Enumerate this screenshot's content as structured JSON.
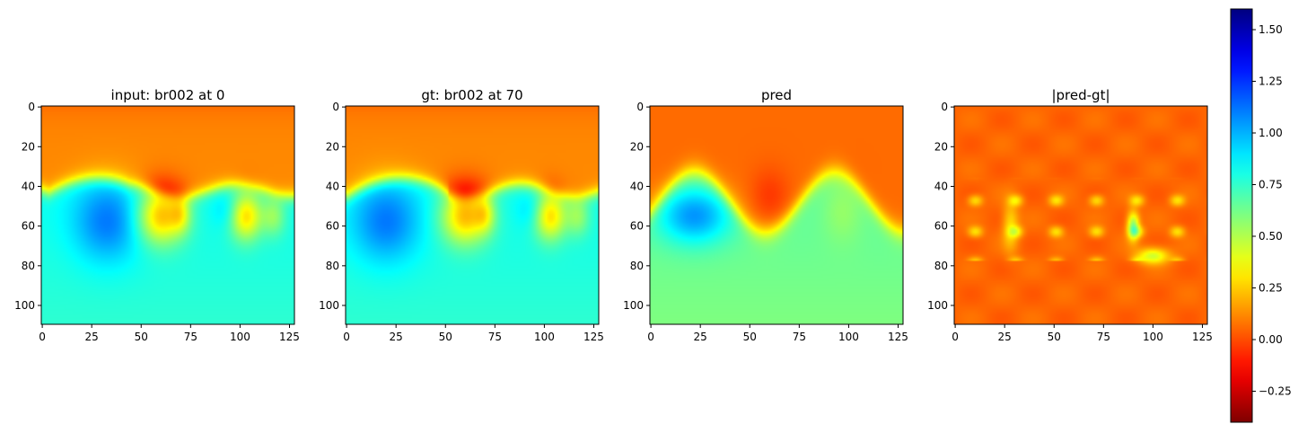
{
  "chart_data": [
    {
      "type": "heatmap",
      "title": "input: br002 at 0",
      "x_ticks": [
        0,
        25,
        50,
        75,
        100,
        125
      ],
      "y_ticks": [
        0,
        20,
        40,
        60,
        80,
        100
      ],
      "xlim": [
        -0.5,
        127.5
      ],
      "ylim": [
        109.5,
        -0.5
      ],
      "field": "input"
    },
    {
      "type": "heatmap",
      "title": "gt: br002 at 70",
      "x_ticks": [
        0,
        25,
        50,
        75,
        100,
        125
      ],
      "y_ticks": [
        0,
        20,
        40,
        60,
        80,
        100
      ],
      "xlim": [
        -0.5,
        127.5
      ],
      "ylim": [
        109.5,
        -0.5
      ],
      "field": "gt"
    },
    {
      "type": "heatmap",
      "title": "pred",
      "x_ticks": [
        0,
        25,
        50,
        75,
        100,
        125
      ],
      "y_ticks": [
        0,
        20,
        40,
        60,
        80,
        100
      ],
      "xlim": [
        -0.5,
        127.5
      ],
      "ylim": [
        109.5,
        -0.5
      ],
      "field": "pred"
    },
    {
      "type": "heatmap",
      "title": "|pred-gt|",
      "x_ticks": [
        0,
        25,
        50,
        75,
        100,
        125
      ],
      "y_ticks": [
        0,
        20,
        40,
        60,
        80,
        100
      ],
      "xlim": [
        -0.5,
        127.5
      ],
      "ylim": [
        109.5,
        -0.5
      ],
      "field": "err"
    }
  ],
  "colorbar": {
    "colormap": "jet_r",
    "range": [
      -0.4,
      1.6
    ],
    "ticks": [
      -0.25,
      0.0,
      0.25,
      0.5,
      0.75,
      1.0,
      1.25,
      1.5
    ],
    "tick_labels": [
      "−0.25",
      "0.00",
      "0.25",
      "0.50",
      "0.75",
      "1.00",
      "1.25",
      "1.50"
    ]
  }
}
